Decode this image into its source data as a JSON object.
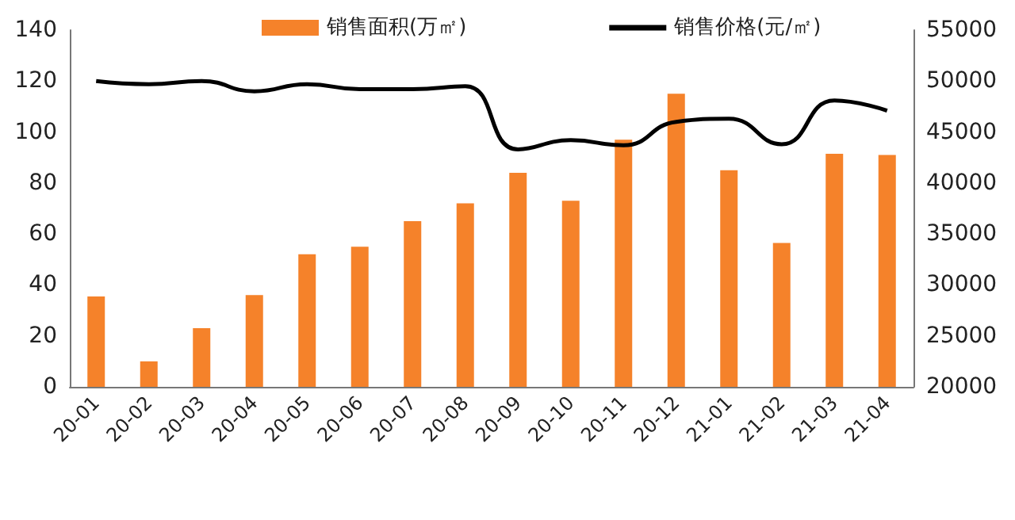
{
  "chart_data": {
    "type": "bar",
    "categories": [
      "20-01",
      "20-02",
      "20-03",
      "20-04",
      "20-05",
      "20-06",
      "20-07",
      "20-08",
      "20-09",
      "20-10",
      "20-11",
      "20-12",
      "21-01",
      "21-02",
      "21-03",
      "21-04"
    ],
    "series": [
      {
        "name": "销售面积(万㎡)",
        "color": "#f5822a",
        "values": [
          35.5,
          10,
          23,
          36,
          52,
          55,
          65,
          72,
          84,
          73,
          97,
          115,
          85,
          56.5,
          91.5,
          91
        ]
      },
      {
        "name": "销售价格(元/㎡)",
        "type": "line",
        "axis": "y2",
        "color": "#000000",
        "values": [
          50000,
          49700,
          50000,
          49000,
          49700,
          49200,
          49200,
          49500,
          43300,
          44200,
          43700,
          46000,
          46300,
          43800,
          48100,
          47100
        ]
      }
    ],
    "ylim": [
      0,
      140
    ],
    "yticks": [
      0,
      20,
      40,
      60,
      80,
      100,
      120,
      140
    ],
    "y2lim": [
      20000,
      55000
    ],
    "y2ticks": [
      20000,
      25000,
      30000,
      35000,
      40000,
      45000,
      50000,
      55000
    ],
    "grid": false,
    "legend": "top",
    "marker": "none"
  }
}
